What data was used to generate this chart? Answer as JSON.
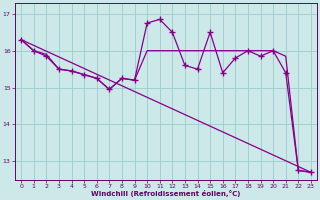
{
  "xlabel": "Windchill (Refroidissement éolien,°C)",
  "bg_color": "#cce8e8",
  "line_color": "#880088",
  "grid_color": "#99cccc",
  "ylim": [
    12.5,
    17.3
  ],
  "xlim": [
    -0.5,
    23.5
  ],
  "yticks": [
    13,
    14,
    15,
    16,
    17
  ],
  "xticks": [
    0,
    1,
    2,
    3,
    4,
    5,
    6,
    7,
    8,
    9,
    10,
    11,
    12,
    13,
    14,
    15,
    16,
    17,
    18,
    19,
    20,
    21,
    22,
    23
  ],
  "line1_x": [
    0,
    1,
    2,
    3,
    4,
    5,
    6,
    7,
    8,
    9,
    10,
    11,
    12,
    13,
    14,
    15,
    16,
    17,
    18,
    19,
    20,
    21,
    22,
    23
  ],
  "line1_y": [
    16.3,
    16.0,
    15.85,
    15.5,
    15.45,
    15.35,
    15.25,
    14.95,
    15.25,
    15.2,
    16.75,
    16.85,
    16.5,
    15.6,
    15.5,
    16.5,
    15.4,
    15.8,
    16.0,
    15.85,
    16.0,
    15.4,
    12.75,
    12.7
  ],
  "line2_x": [
    0,
    1,
    2,
    3,
    4,
    5,
    6,
    7,
    8,
    9,
    10,
    11,
    12,
    13,
    14,
    15,
    16,
    17,
    18,
    19,
    20,
    21,
    22,
    23
  ],
  "line2_y": [
    16.3,
    16.0,
    15.9,
    15.5,
    15.45,
    15.35,
    15.25,
    14.95,
    15.25,
    15.2,
    16.0,
    16.0,
    16.0,
    16.0,
    16.0,
    16.0,
    16.0,
    16.0,
    16.0,
    16.0,
    16.0,
    15.85,
    12.75,
    12.7
  ],
  "line3_x": [
    0,
    23
  ],
  "line3_y": [
    16.3,
    12.7
  ]
}
